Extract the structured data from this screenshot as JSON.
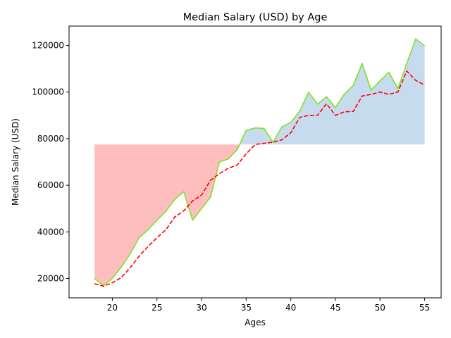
{
  "chart_data": {
    "type": "line",
    "title": "Median Salary (USD) by Age",
    "xlabel": "Ages",
    "ylabel": "Median Salary (USD)",
    "xlim": [
      15.15,
      56.85
    ],
    "ylim": [
      11700,
      128300
    ],
    "xticks": [
      20,
      25,
      30,
      35,
      40,
      45,
      50,
      55
    ],
    "yticks": [
      20000,
      40000,
      60000,
      80000,
      100000,
      120000
    ],
    "grid": false,
    "legend": "none",
    "fill_reference": 77500,
    "x": [
      18,
      19,
      20,
      21,
      22,
      23,
      24,
      25,
      26,
      27,
      28,
      29,
      30,
      31,
      32,
      33,
      34,
      35,
      36,
      37,
      38,
      39,
      40,
      41,
      42,
      43,
      44,
      45,
      46,
      47,
      48,
      49,
      50,
      51,
      52,
      53,
      54,
      55
    ],
    "series": [
      {
        "style": "solid",
        "color": "#7ee22a",
        "values": [
          20000,
          17000,
          20000,
          24900,
          30500,
          37500,
          40900,
          45000,
          48800,
          53900,
          57300,
          45000,
          50000,
          54900,
          70000,
          71300,
          75300,
          83600,
          84600,
          84400,
          78500,
          85000,
          87000,
          91800,
          99900,
          94800,
          98000,
          93300,
          99100,
          102800,
          112300,
          100800,
          104800,
          108500,
          101400,
          112300,
          122800,
          119800
        ]
      },
      {
        "style": "dashed",
        "color": "#ff0000",
        "values": [
          17800,
          16700,
          18200,
          20400,
          24600,
          29600,
          33700,
          37500,
          40900,
          46400,
          49000,
          53300,
          55800,
          62100,
          65000,
          67300,
          68700,
          73500,
          77500,
          78000,
          78500,
          79500,
          82500,
          89100,
          90000,
          90000,
          95000,
          90000,
          91500,
          91700,
          98300,
          99000,
          100000,
          99000,
          100000,
          109000,
          105000,
          103000
        ]
      }
    ],
    "fill_colors": {
      "above": "#c6dbee",
      "below": "#ffbebe"
    }
  }
}
